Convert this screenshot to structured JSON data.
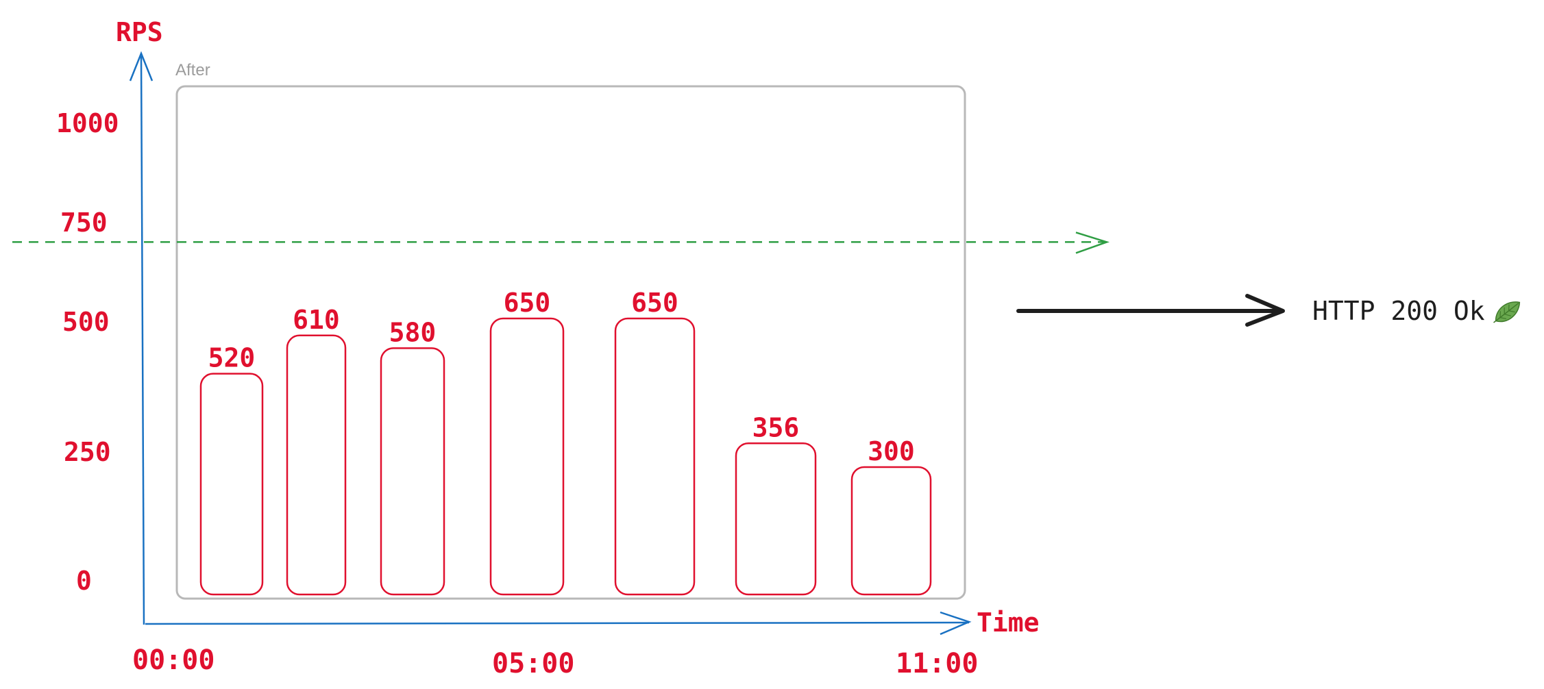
{
  "chart_data": {
    "type": "bar",
    "frame_label": "After",
    "y_axis_title": "RPS",
    "x_axis_title": "Time",
    "y_ticks": [
      0,
      250,
      500,
      750,
      1000
    ],
    "y_tick_labels": [
      "0",
      "250",
      "500",
      "750",
      "1000"
    ],
    "x_tick_labels": [
      "00:00",
      "05:00",
      "11:00"
    ],
    "values": [
      520,
      610,
      580,
      650,
      650,
      356,
      300
    ],
    "value_labels": [
      "520",
      "610",
      "580",
      "650",
      "650",
      "356",
      "300"
    ],
    "threshold": 830,
    "ylim": [
      0,
      1000
    ],
    "grid": false,
    "colors": {
      "bars": "#e0102e",
      "axes": "#1971c2",
      "threshold": "#2f9e44",
      "frame": "#b8b8b8",
      "arrow": "#1e1e1e"
    }
  },
  "status": {
    "text": "HTTP 200 Ok",
    "icon": "leaf-icon"
  }
}
